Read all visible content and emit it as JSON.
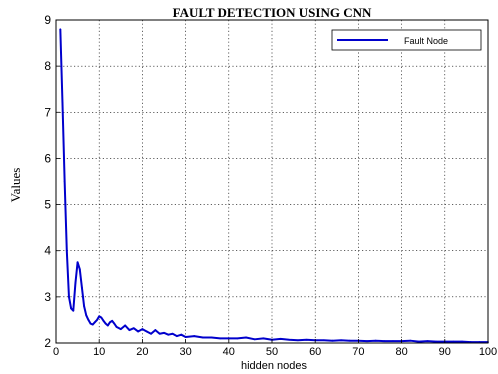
{
  "chart_data": {
    "type": "line",
    "title": "FAULT DETECTION USING CNN",
    "xlabel": "hidden nodes",
    "ylabel": "Values",
    "xlim": [
      0,
      100
    ],
    "ylim": [
      2,
      9
    ],
    "xticks": [
      0,
      10,
      20,
      30,
      40,
      50,
      60,
      70,
      80,
      90,
      100
    ],
    "yticks": [
      2,
      3,
      4,
      5,
      6,
      7,
      8,
      9
    ],
    "grid": true,
    "legend": "top-right",
    "series": [
      {
        "name": "Fault Node",
        "color": "#0000cc",
        "x": [
          1,
          1.5,
          2,
          2.5,
          3,
          3.5,
          4,
          4.5,
          5,
          5.5,
          6,
          6.5,
          7,
          7.5,
          8,
          8.5,
          9,
          9.5,
          10,
          10.5,
          11,
          11.5,
          12,
          12.5,
          13,
          13.5,
          14,
          15,
          16,
          17,
          18,
          19,
          20,
          21,
          22,
          23,
          24,
          25,
          26,
          27,
          28,
          29,
          30,
          32,
          34,
          36,
          38,
          40,
          42,
          44,
          46,
          48,
          50,
          52,
          54,
          56,
          58,
          60,
          62,
          64,
          66,
          68,
          70,
          72,
          74,
          76,
          78,
          80,
          82,
          84,
          86,
          88,
          90,
          92,
          94,
          96,
          98,
          100
        ],
        "y": [
          8.8,
          7.2,
          5.5,
          4.0,
          3.0,
          2.75,
          2.7,
          3.3,
          3.75,
          3.6,
          3.2,
          2.8,
          2.6,
          2.5,
          2.42,
          2.4,
          2.45,
          2.5,
          2.58,
          2.55,
          2.48,
          2.42,
          2.38,
          2.45,
          2.48,
          2.42,
          2.35,
          2.3,
          2.38,
          2.28,
          2.32,
          2.25,
          2.3,
          2.25,
          2.2,
          2.28,
          2.2,
          2.22,
          2.18,
          2.2,
          2.15,
          2.18,
          2.13,
          2.15,
          2.12,
          2.12,
          2.1,
          2.1,
          2.1,
          2.12,
          2.08,
          2.1,
          2.07,
          2.09,
          2.07,
          2.06,
          2.07,
          2.06,
          2.06,
          2.05,
          2.06,
          2.05,
          2.05,
          2.04,
          2.05,
          2.04,
          2.04,
          2.04,
          2.05,
          2.03,
          2.04,
          2.03,
          2.03,
          2.03,
          2.03,
          2.02,
          2.02,
          2.02
        ]
      }
    ]
  }
}
